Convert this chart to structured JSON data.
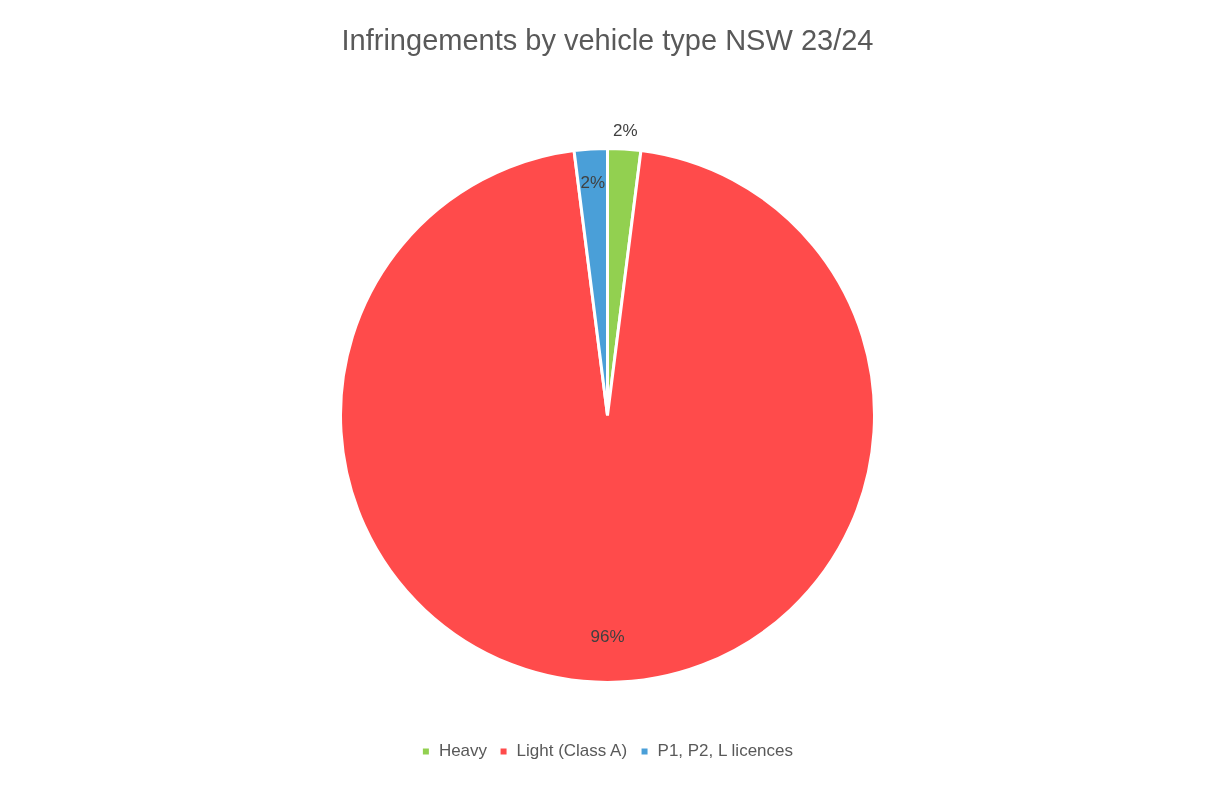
{
  "chart_data": {
    "type": "pie",
    "title": "Infringements by vehicle type NSW 23/24",
    "categories": [
      "Heavy",
      "Light (Class A)",
      "P1, P2, L licences"
    ],
    "values": [
      2,
      96,
      2
    ],
    "colors": [
      "#92d050",
      "#ff4b4b",
      "#4a9fd8"
    ],
    "value_labels": [
      "2%",
      "96%",
      "2%"
    ],
    "legend": "bottom"
  }
}
